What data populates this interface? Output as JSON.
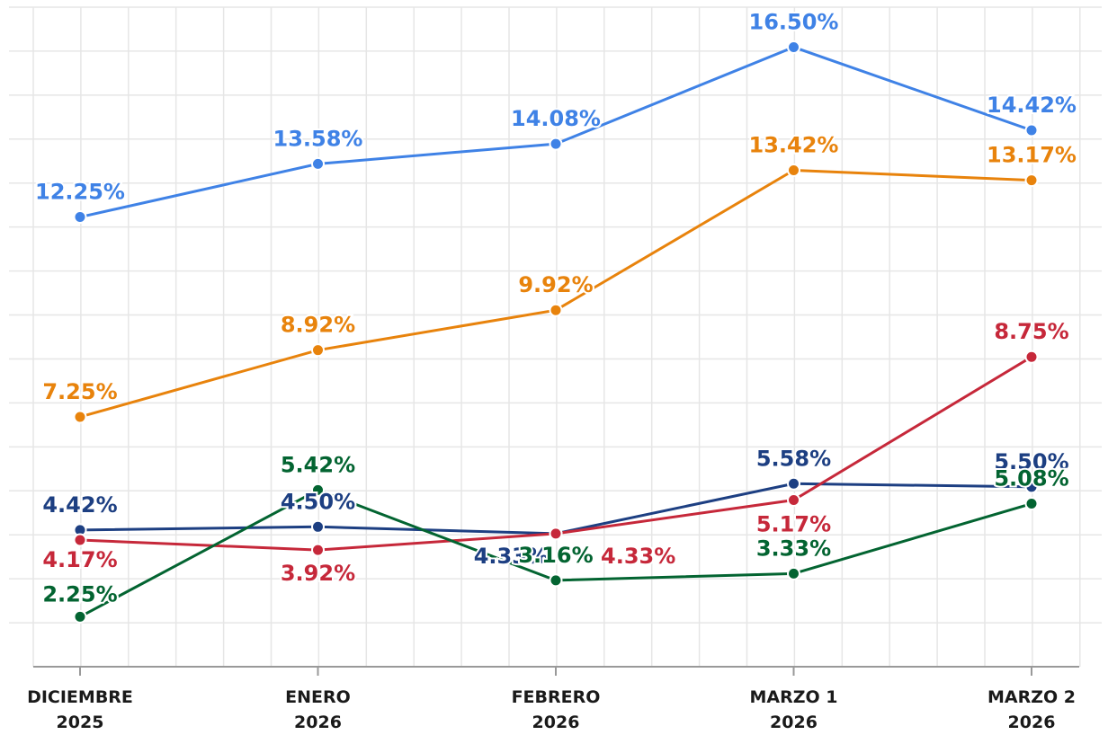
{
  "chart_data": {
    "type": "line",
    "categories": [
      "DICIEMBRE\n2025",
      "ENERO\n2026",
      "FEBRERO\n2026",
      "MARZO 1\n2026",
      "MARZO 2\n2026"
    ],
    "ylim": [
      1,
      17.5
    ],
    "grid": true,
    "series": [
      {
        "color": "#3f82e6",
        "values": [
          12.25,
          13.58,
          14.08,
          16.5,
          14.42
        ],
        "value_labels": [
          "12.25%",
          "13.58%",
          "14.08%",
          "16.50%",
          "14.42%"
        ]
      },
      {
        "color": "#e8830c",
        "values": [
          7.25,
          8.92,
          9.92,
          13.42,
          13.17
        ],
        "value_labels": [
          "7.25%",
          "8.92%",
          "9.92%",
          "13.42%",
          "13.17%"
        ]
      },
      {
        "color": "#1d3f82",
        "values": [
          4.42,
          4.5,
          4.33,
          5.58,
          5.5
        ],
        "value_labels": [
          "4.42%",
          "4.50%",
          "4.33%",
          "5.58%",
          "5.50%"
        ]
      },
      {
        "color": "#c6283a",
        "values": [
          4.17,
          3.92,
          4.33,
          5.17,
          8.75
        ],
        "value_labels": [
          "4.17%",
          "3.92%",
          "4.33%",
          "5.17%",
          "8.75%"
        ]
      },
      {
        "color": "#036431",
        "values": [
          2.25,
          5.42,
          3.16,
          3.33,
          5.08
        ],
        "value_labels": [
          "2.25%",
          "5.42%",
          "3.16%",
          "3.33%",
          "5.08%"
        ]
      }
    ]
  }
}
